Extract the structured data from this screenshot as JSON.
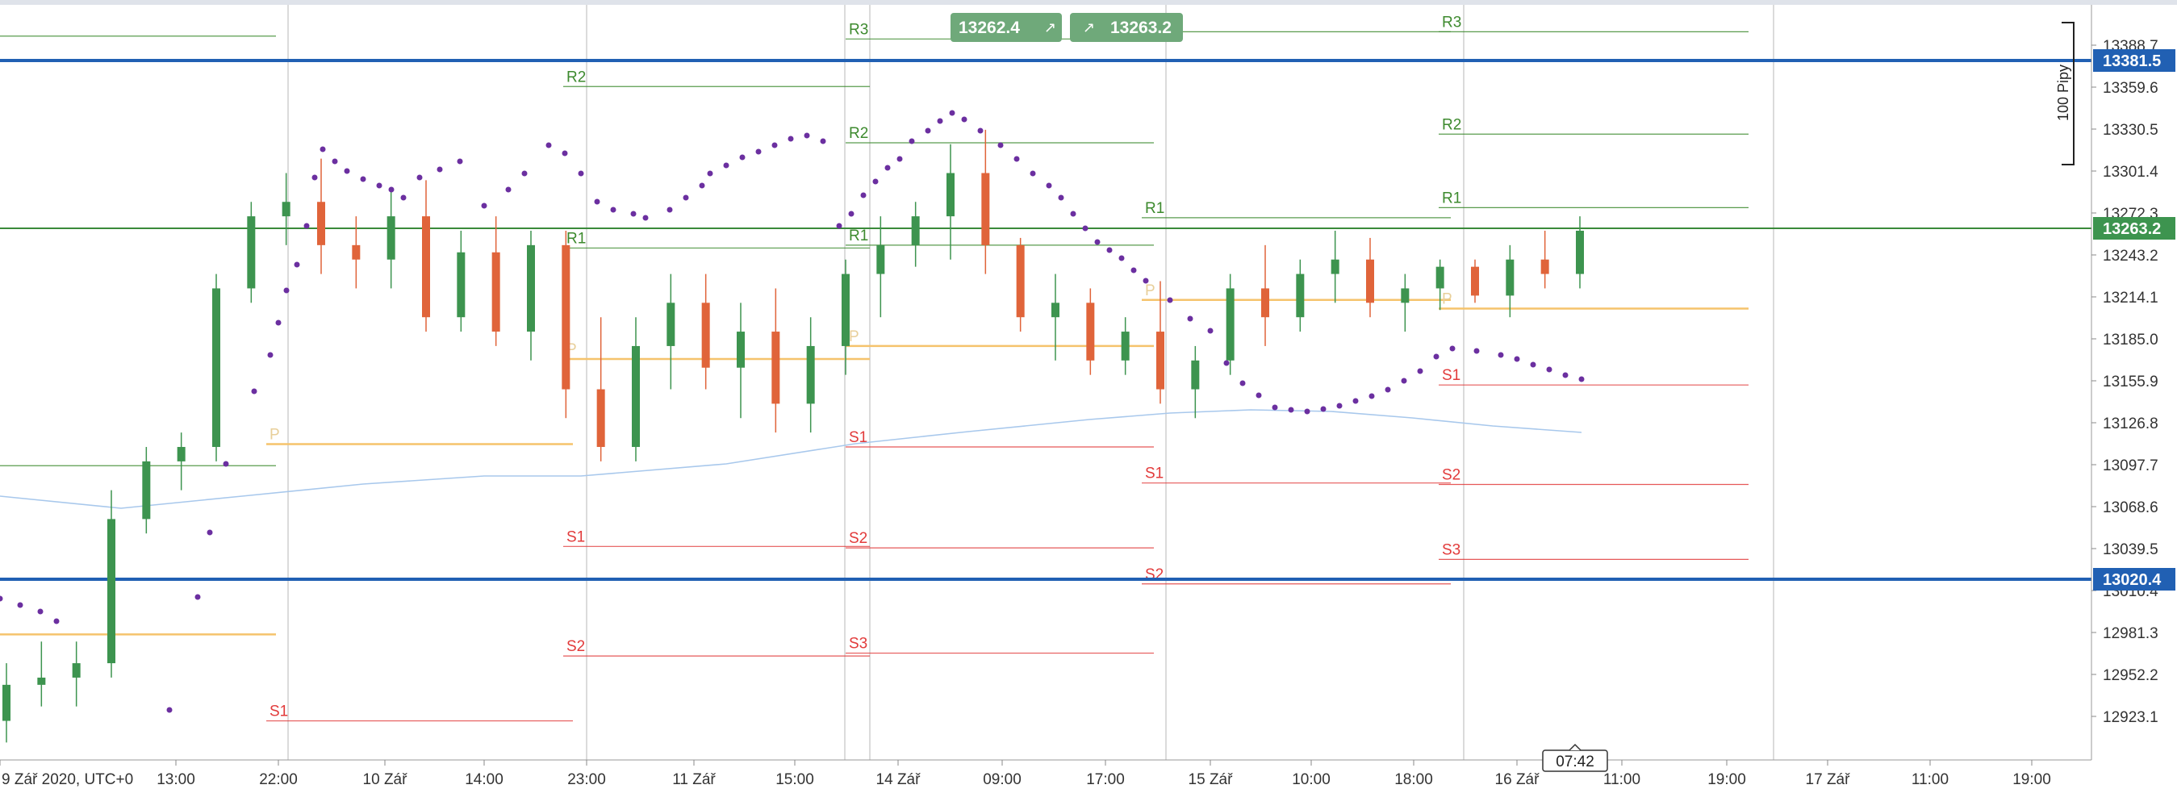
{
  "chart_data": {
    "type": "candlestick",
    "y_ticks": [
      "13388.7",
      "13359.6",
      "13330.5",
      "13301.4",
      "13272.3",
      "13243.2",
      "13214.1",
      "13185.0",
      "13155.9",
      "13126.8",
      "13097.7",
      "13068.6",
      "13039.5",
      "13010.4",
      "12981.3",
      "12952.2",
      "12923.1"
    ],
    "x_ticks": [
      "9 Zář 2020, UTC+0",
      "13:00",
      "22:00",
      "10 Zář",
      "14:00",
      "23:00",
      "11 Zář",
      "15:00",
      "14 Zář",
      "09:00",
      "17:00",
      "15 Zář",
      "10:00",
      "18:00",
      "16 Zář",
      "11:00",
      "19:00",
      "17 Zář",
      "11:00",
      "19:00"
    ],
    "price_labels": {
      "upper_line": "13381.5",
      "current": "13263.2",
      "lower_line": "13020.4"
    },
    "trade_panel": {
      "sell": "13262.4",
      "buy": "13263.2"
    },
    "cursor_time": "07:42",
    "range_label": "100 Pipy",
    "colors": {
      "up": "#3d944f",
      "down": "#e0643a",
      "pivot": "#f5c36c",
      "resistance": "#3d8a2e",
      "support": "#e23b3b",
      "sar": "#6b2fa0",
      "ma": "#a8c8ec",
      "hline": "#2160b3",
      "current_line": "#3a8a3a"
    },
    "pivot_labels": {
      "r3": "R3",
      "r2": "R2",
      "r1": "R1",
      "p": "P",
      "s1": "S1",
      "s2": "S2",
      "s3": "S3"
    },
    "candles_ohlc_sample": [
      [
        12920,
        12960,
        12905,
        12945
      ],
      [
        12945,
        12975,
        12930,
        12950
      ],
      [
        12950,
        12975,
        12930,
        12960
      ],
      [
        12960,
        13080,
        12950,
        13060
      ],
      [
        13060,
        13110,
        13050,
        13100
      ],
      [
        13100,
        13120,
        13080,
        13110
      ],
      [
        13110,
        13230,
        13100,
        13220
      ],
      [
        13220,
        13280,
        13210,
        13270
      ],
      [
        13270,
        13300,
        13250,
        13280
      ],
      [
        13280,
        13310,
        13230,
        13250
      ],
      [
        13250,
        13270,
        13220,
        13240
      ],
      [
        13240,
        13290,
        13220,
        13270
      ],
      [
        13270,
        13295,
        13190,
        13200
      ],
      [
        13200,
        13260,
        13190,
        13245
      ],
      [
        13245,
        13270,
        13180,
        13190
      ],
      [
        13190,
        13260,
        13170,
        13250
      ],
      [
        13250,
        13260,
        13130,
        13150
      ],
      [
        13150,
        13200,
        13100,
        13110
      ],
      [
        13110,
        13200,
        13100,
        13180
      ],
      [
        13180,
        13230,
        13150,
        13210
      ],
      [
        13210,
        13230,
        13150,
        13165
      ],
      [
        13165,
        13210,
        13130,
        13190
      ],
      [
        13190,
        13220,
        13120,
        13140
      ],
      [
        13140,
        13200,
        13120,
        13180
      ],
      [
        13180,
        13240,
        13160,
        13230
      ],
      [
        13230,
        13270,
        13200,
        13250
      ],
      [
        13250,
        13280,
        13235,
        13270
      ],
      [
        13270,
        13320,
        13240,
        13300
      ],
      [
        13300,
        13330,
        13230,
        13250
      ],
      [
        13250,
        13255,
        13190,
        13200
      ],
      [
        13200,
        13230,
        13170,
        13210
      ],
      [
        13210,
        13220,
        13160,
        13170
      ],
      [
        13170,
        13200,
        13160,
        13190
      ],
      [
        13190,
        13225,
        13140,
        13150
      ],
      [
        13150,
        13180,
        13130,
        13170
      ],
      [
        13170,
        13230,
        13160,
        13220
      ],
      [
        13220,
        13250,
        13180,
        13200
      ],
      [
        13200,
        13240,
        13190,
        13230
      ],
      [
        13230,
        13260,
        13210,
        13240
      ],
      [
        13240,
        13255,
        13200,
        13210
      ],
      [
        13210,
        13230,
        13190,
        13220
      ],
      [
        13220,
        13240,
        13205,
        13235
      ],
      [
        13235,
        13240,
        13210,
        13215
      ],
      [
        13215,
        13250,
        13200,
        13240
      ],
      [
        13240,
        13260,
        13220,
        13230
      ],
      [
        13230,
        13270,
        13220,
        13260
      ]
    ]
  }
}
